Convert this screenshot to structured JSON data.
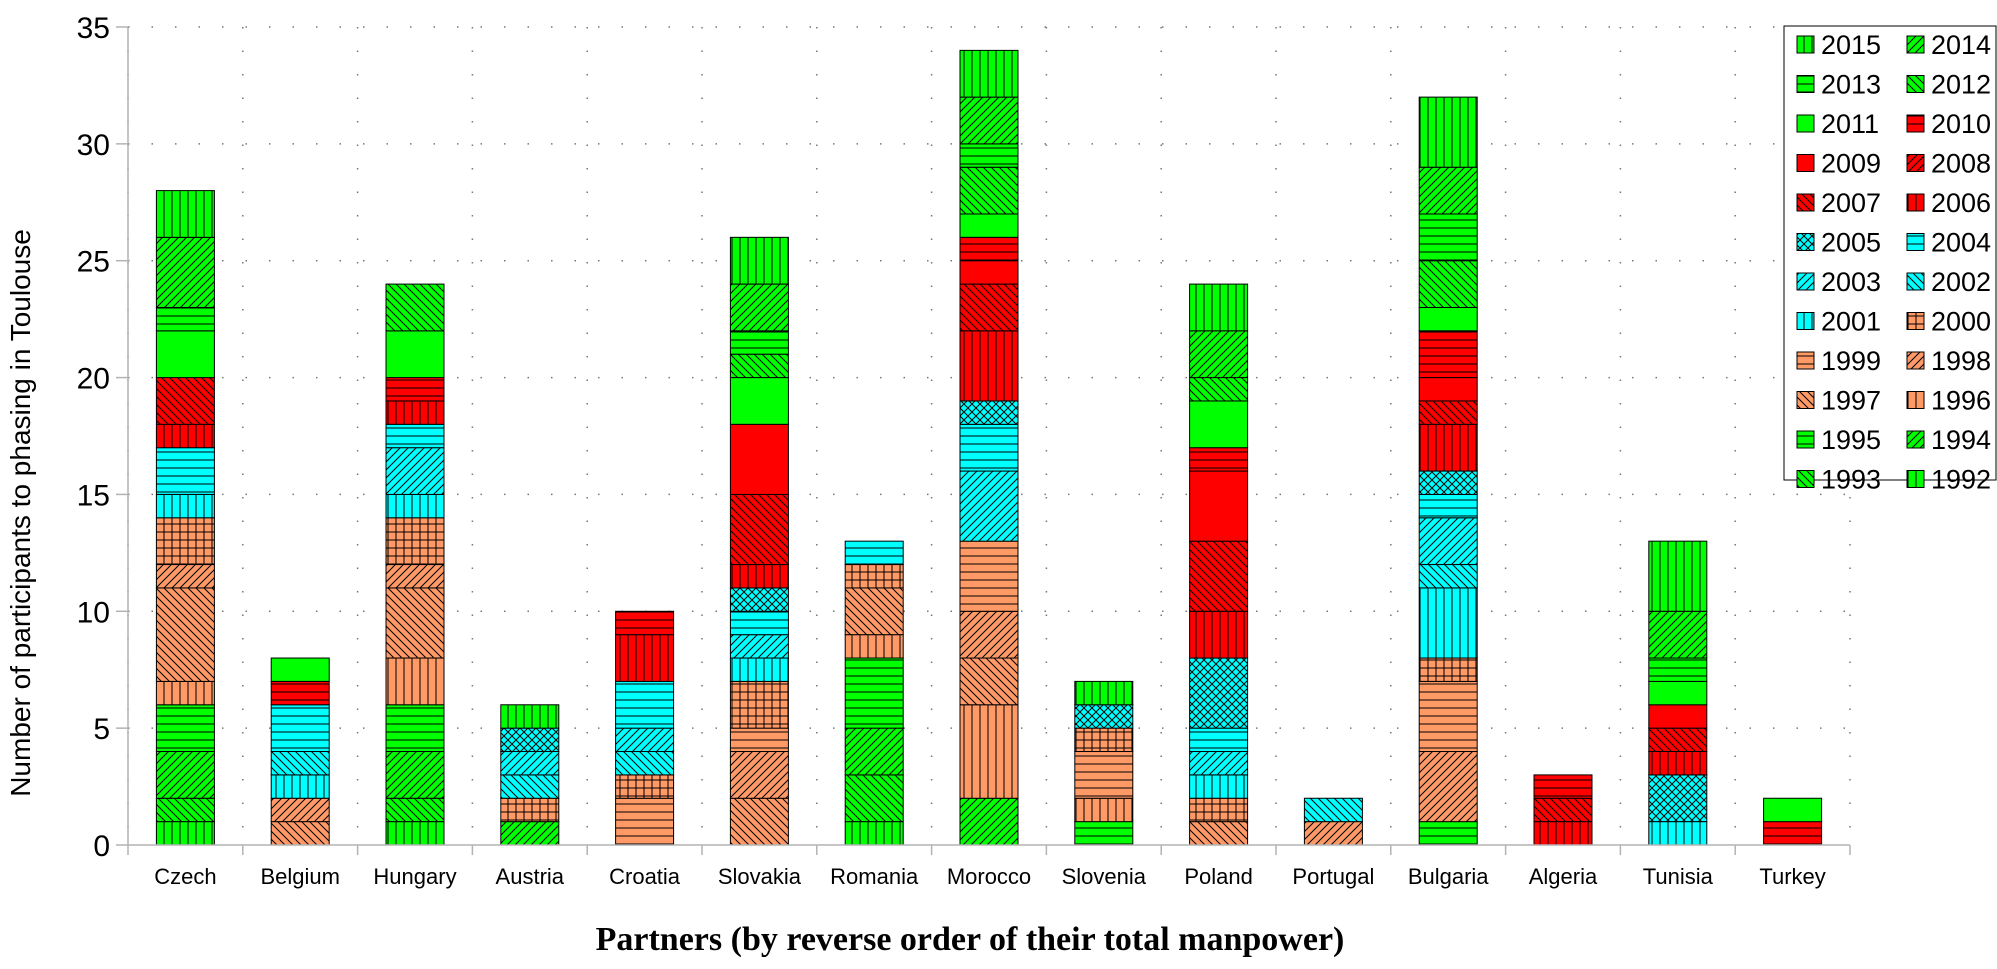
{
  "chart_data": {
    "type": "bar",
    "stacked": true,
    "title": "",
    "xlabel": "Partners (by reverse order of their total manpower)",
    "ylabel": "Number of participants to phasing in Toulouse",
    "ylim": [
      0,
      35
    ],
    "yticks": [
      0,
      5,
      10,
      15,
      20,
      25,
      30,
      35
    ],
    "grid": "dotted",
    "legend_position": "top-right",
    "categories": [
      "Czech",
      "Belgium",
      "Hungary",
      "Austria",
      "Croatia",
      "Slovakia",
      "Romania",
      "Morocco",
      "Slovenia",
      "Poland",
      "Portugal",
      "Bulgaria",
      "Algeria",
      "Tunisia",
      "Turkey"
    ],
    "series": [
      {
        "name": "1992",
        "color": "#00ff00",
        "pattern": "vert",
        "values": [
          1,
          0,
          1,
          0,
          0,
          0,
          1,
          0,
          0,
          0,
          0,
          0,
          0,
          0,
          0
        ]
      },
      {
        "name": "1993",
        "color": "#00ff00",
        "pattern": "back",
        "values": [
          1,
          0,
          1,
          0,
          0,
          0,
          2,
          0,
          0,
          0,
          0,
          0,
          0,
          0,
          0
        ]
      },
      {
        "name": "1994",
        "color": "#00ff00",
        "pattern": "fwd",
        "values": [
          2,
          0,
          2,
          1,
          0,
          0,
          2,
          2,
          0,
          0,
          0,
          0,
          0,
          0,
          0
        ]
      },
      {
        "name": "1995",
        "color": "#00ff00",
        "pattern": "horiz",
        "values": [
          2,
          0,
          2,
          0,
          0,
          0,
          3,
          0,
          1,
          0,
          0,
          1,
          0,
          0,
          0
        ]
      },
      {
        "name": "1996",
        "color": "#ff9966",
        "pattern": "vert",
        "values": [
          1,
          0,
          2,
          0,
          0,
          0,
          1,
          4,
          1,
          0,
          0,
          0,
          0,
          0,
          0
        ]
      },
      {
        "name": "1997",
        "color": "#ff9966",
        "pattern": "back",
        "values": [
          4,
          1,
          3,
          0,
          0,
          2,
          2,
          2,
          0,
          1,
          0,
          0,
          0,
          0,
          0
        ]
      },
      {
        "name": "1998",
        "color": "#ff9966",
        "pattern": "fwd",
        "values": [
          1,
          1,
          1,
          0,
          0,
          2,
          0,
          2,
          0,
          0,
          1,
          3,
          0,
          0,
          0
        ]
      },
      {
        "name": "1999",
        "color": "#ff9966",
        "pattern": "horiz",
        "values": [
          0,
          0,
          0,
          0,
          2,
          1,
          0,
          3,
          2,
          0,
          0,
          3,
          0,
          0,
          0
        ]
      },
      {
        "name": "2000",
        "color": "#ff9966",
        "pattern": "grid",
        "values": [
          2,
          0,
          2,
          1,
          1,
          2,
          1,
          0,
          1,
          1,
          0,
          1,
          0,
          0,
          0
        ]
      },
      {
        "name": "2001",
        "color": "#00ffff",
        "pattern": "vert",
        "values": [
          1,
          1,
          1,
          0,
          0,
          1,
          0,
          0,
          0,
          1,
          0,
          3,
          0,
          1,
          0
        ]
      },
      {
        "name": "2002",
        "color": "#00ffff",
        "pattern": "back",
        "values": [
          0,
          1,
          0,
          1,
          1,
          0,
          0,
          0,
          0,
          0,
          1,
          1,
          0,
          0,
          0
        ]
      },
      {
        "name": "2003",
        "color": "#00ffff",
        "pattern": "fwd",
        "values": [
          0,
          0,
          2,
          1,
          1,
          1,
          0,
          3,
          0,
          1,
          0,
          2,
          0,
          0,
          0
        ]
      },
      {
        "name": "2004",
        "color": "#00ffff",
        "pattern": "horiz",
        "values": [
          2,
          2,
          1,
          0,
          2,
          1,
          1,
          2,
          0,
          1,
          0,
          1,
          0,
          0,
          0
        ]
      },
      {
        "name": "2005",
        "color": "#00ffff",
        "pattern": "cross",
        "values": [
          0,
          0,
          0,
          1,
          0,
          1,
          0,
          1,
          1,
          3,
          0,
          1,
          0,
          2,
          0
        ]
      },
      {
        "name": "2006",
        "color": "#ff0000",
        "pattern": "vert",
        "values": [
          1,
          0,
          1,
          0,
          2,
          1,
          0,
          3,
          0,
          2,
          0,
          2,
          1,
          1,
          0
        ]
      },
      {
        "name": "2007",
        "color": "#ff0000",
        "pattern": "back",
        "values": [
          2,
          0,
          0,
          0,
          0,
          3,
          0,
          2,
          0,
          3,
          0,
          1,
          1,
          1,
          0
        ]
      },
      {
        "name": "2008",
        "color": "#ff0000",
        "pattern": "fwd",
        "values": [
          0,
          0,
          0,
          0,
          0,
          0,
          0,
          0,
          0,
          0,
          0,
          0,
          0,
          0,
          0
        ]
      },
      {
        "name": "2009",
        "color": "#ff0000",
        "pattern": "none",
        "values": [
          0,
          0,
          0,
          0,
          0,
          3,
          0,
          1,
          0,
          3,
          0,
          1,
          0,
          1,
          0
        ]
      },
      {
        "name": "2010",
        "color": "#ff0000",
        "pattern": "horiz",
        "values": [
          0,
          1,
          1,
          0,
          1,
          0,
          0,
          1,
          0,
          1,
          0,
          2,
          1,
          0,
          1
        ]
      },
      {
        "name": "2011",
        "color": "#00ff00",
        "pattern": "none",
        "values": [
          2,
          1,
          2,
          0,
          0,
          2,
          0,
          1,
          0,
          2,
          0,
          1,
          0,
          1,
          1
        ]
      },
      {
        "name": "2012",
        "color": "#00ff00",
        "pattern": "back",
        "values": [
          0,
          0,
          2,
          0,
          0,
          1,
          0,
          2,
          0,
          1,
          0,
          2,
          0,
          0,
          0
        ]
      },
      {
        "name": "2013",
        "color": "#00ff00",
        "pattern": "horiz",
        "values": [
          1,
          0,
          0,
          0,
          0,
          1,
          0,
          1,
          0,
          0,
          0,
          2,
          0,
          1,
          0
        ]
      },
      {
        "name": "2014",
        "color": "#00ff00",
        "pattern": "fwd",
        "values": [
          3,
          0,
          0,
          0,
          0,
          2,
          0,
          2,
          0,
          2,
          0,
          2,
          0,
          2,
          0
        ]
      },
      {
        "name": "2015",
        "color": "#00ff00",
        "pattern": "vert",
        "values": [
          2,
          0,
          0,
          1,
          0,
          2,
          0,
          2,
          1,
          2,
          0,
          3,
          0,
          3,
          0
        ]
      }
    ]
  }
}
